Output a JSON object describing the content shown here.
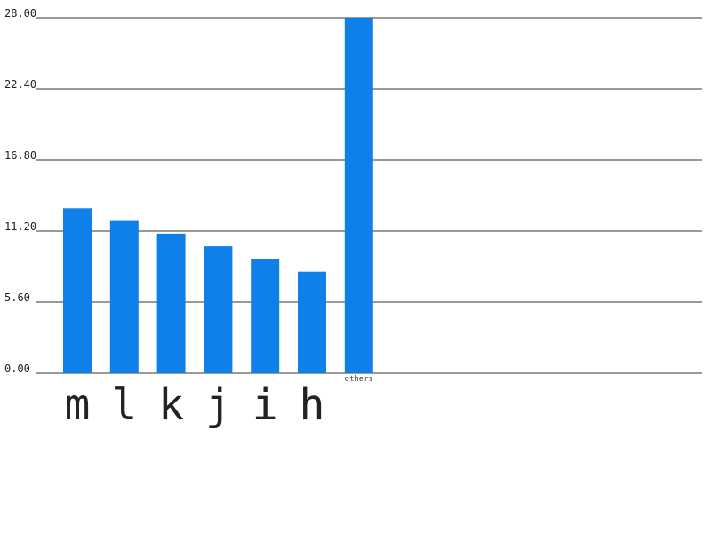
{
  "chart_data": {
    "type": "bar",
    "categories": [
      "m",
      "l",
      "k",
      "j",
      "i",
      "h",
      "others"
    ],
    "values": [
      13.0,
      12.0,
      11.0,
      10.0,
      9.0,
      8.0,
      28.0
    ],
    "y_ticks": [
      "0.00",
      "5.60",
      "11.20",
      "16.80",
      "22.40",
      "28.00"
    ],
    "ylim": [
      0,
      28
    ],
    "grid": true,
    "bar_color": "#0f80ea"
  }
}
